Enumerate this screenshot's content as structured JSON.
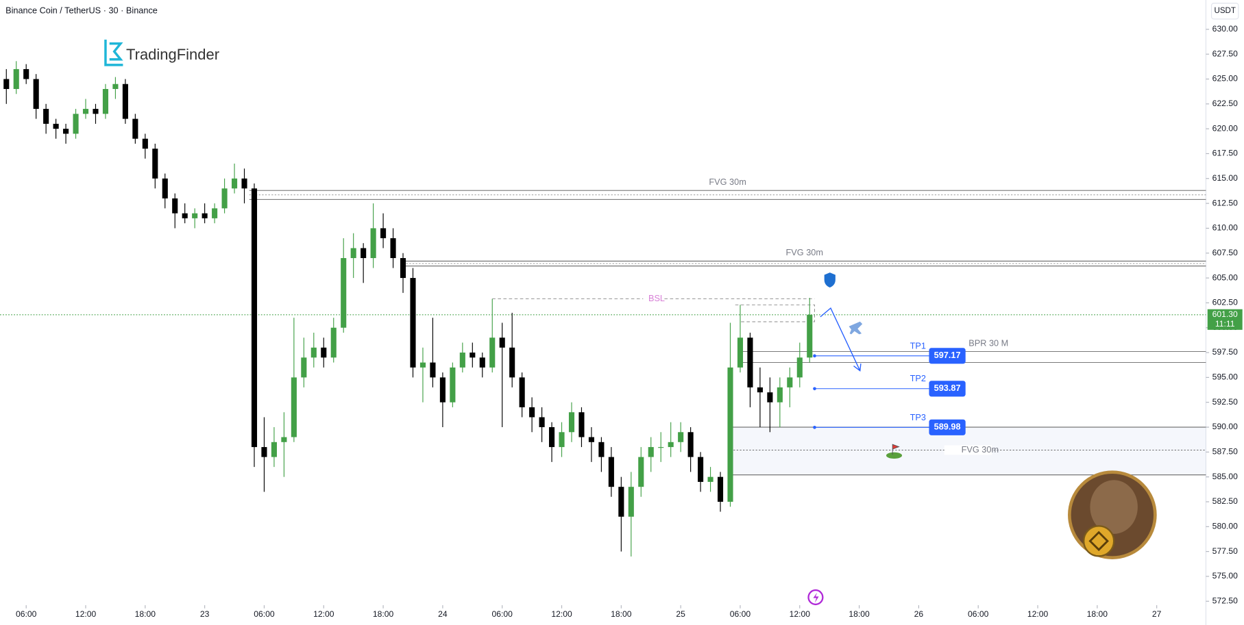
{
  "chart_data": {
    "type": "candlestick",
    "title": "Binance Coin / TetherUS · 30 · Binance",
    "currency": "USDT",
    "watermark": "TradingFinder",
    "up_color": "#43a047",
    "down_color": "#000000",
    "x": [
      4,
      5,
      6,
      7,
      8,
      9,
      10,
      11,
      12,
      13,
      14,
      15,
      16,
      17,
      18,
      19,
      20,
      21,
      22,
      23,
      24,
      25,
      26,
      27,
      28,
      29,
      30,
      31,
      32,
      33,
      34,
      35,
      36,
      37,
      38,
      39,
      40,
      41,
      42,
      43,
      44,
      45,
      46,
      47,
      48,
      49,
      50,
      51,
      52,
      53,
      54,
      55,
      56,
      57,
      58,
      59,
      60,
      61,
      62,
      63,
      64,
      65,
      66,
      67,
      68,
      69,
      70,
      71,
      72,
      73,
      74,
      75,
      76,
      77,
      78,
      79,
      80,
      81,
      82,
      83,
      84,
      85
    ],
    "open": [
      625,
      624,
      626,
      625,
      622,
      620.5,
      620,
      619.5,
      621.5,
      622,
      621.5,
      624,
      624.5,
      621,
      619,
      618,
      615,
      613,
      611.5,
      611,
      611.5,
      611,
      612,
      614,
      615,
      614,
      588,
      587,
      588.5,
      589,
      595,
      597,
      598,
      597,
      600,
      607,
      608,
      607,
      610,
      609,
      607,
      605,
      596,
      596.5,
      595,
      592.5,
      596,
      597.5,
      597,
      596,
      599,
      598,
      595,
      592,
      591,
      590,
      588,
      589.5,
      591.5,
      589,
      588.5,
      587,
      584,
      581,
      584,
      587,
      588,
      588,
      588.5,
      589.5,
      587,
      584.5,
      585,
      582.5,
      596,
      599,
      594,
      593.5,
      592.5,
      594,
      595,
      597
    ],
    "high": [
      626,
      626.8,
      626.5,
      625.5,
      622.5,
      621,
      620.5,
      622,
      623,
      622.5,
      624.5,
      625.2,
      625,
      621.5,
      619.5,
      618.5,
      615.5,
      613.5,
      612.5,
      612,
      612.5,
      612.5,
      615,
      616.5,
      616,
      614.5,
      591,
      590,
      591.5,
      601,
      599,
      599.5,
      599,
      601,
      609,
      609.5,
      608.5,
      612.5,
      611.5,
      610,
      607.5,
      606,
      598,
      601,
      595.5,
      596.5,
      598.5,
      598.5,
      597.5,
      602.9,
      600.5,
      601.5,
      595.5,
      593,
      592,
      590.5,
      590.5,
      592.5,
      592,
      590,
      589,
      588,
      585,
      585.5,
      588,
      589,
      589.5,
      590.5,
      590.5,
      590,
      587.5,
      586,
      585.5,
      600.5,
      602.3,
      599.5,
      596,
      595,
      595,
      596,
      598.5,
      603
    ],
    "low": [
      622.5,
      623.5,
      624.5,
      621,
      619.5,
      619,
      618.5,
      619,
      621,
      620.5,
      621,
      623,
      620.5,
      618.5,
      617,
      614,
      612,
      610,
      610.5,
      610,
      610.5,
      610.5,
      611.5,
      613.5,
      612.5,
      586,
      583.5,
      586,
      585,
      588.5,
      594,
      596,
      596,
      596.5,
      599.5,
      605,
      604.5,
      606,
      608,
      606,
      603.5,
      595,
      592.5,
      594,
      590,
      592,
      595.5,
      596,
      595,
      595.5,
      590,
      594,
      591,
      589.5,
      588.5,
      586.5,
      587,
      588.5,
      588,
      586.5,
      585.5,
      583,
      577.5,
      577,
      583,
      585.5,
      586.5,
      587,
      587.5,
      585.5,
      583.5,
      583.5,
      581.5,
      582,
      595.5,
      592,
      590,
      589.5,
      590,
      592,
      594,
      596.5
    ],
    "close": [
      624,
      626,
      625,
      622,
      620.5,
      620,
      619.5,
      621.5,
      622,
      621.5,
      624,
      624.5,
      621,
      619,
      618,
      615,
      613,
      611.5,
      611,
      611.5,
      611,
      612,
      614,
      615,
      614,
      588,
      587,
      588.5,
      589,
      595,
      597,
      598,
      597,
      600,
      607,
      608,
      607,
      610,
      609,
      607,
      605,
      596,
      596.5,
      595,
      592.5,
      596,
      597.5,
      597,
      596,
      599,
      598,
      595,
      592,
      591,
      590,
      588,
      589.5,
      591.5,
      589,
      588.5,
      587,
      584,
      581,
      584,
      587,
      588,
      588,
      588.5,
      589.5,
      587,
      584.5,
      585,
      582.5,
      596,
      599,
      594,
      593.5,
      592.5,
      594,
      595,
      597,
      601.3
    ],
    "xlim": [
      3.36,
      124.96
    ],
    "xticks": [
      {
        "value": 6,
        "label": "06:00"
      },
      {
        "value": 12,
        "label": "12:00"
      },
      {
        "value": 18,
        "label": "18:00"
      },
      {
        "value": 24,
        "label": "23"
      },
      {
        "value": 30,
        "label": "06:00"
      },
      {
        "value": 36,
        "label": "12:00"
      },
      {
        "value": 42,
        "label": "18:00"
      },
      {
        "value": 48,
        "label": "24"
      },
      {
        "value": 54,
        "label": "06:00"
      },
      {
        "value": 60,
        "label": "12:00"
      },
      {
        "value": 66,
        "label": "18:00"
      },
      {
        "value": 72,
        "label": "25"
      },
      {
        "value": 78,
        "label": "06:00"
      },
      {
        "value": 84,
        "label": "12:00"
      },
      {
        "value": 90,
        "label": "18:00"
      },
      {
        "value": 96,
        "label": "26"
      },
      {
        "value": 102,
        "label": "06:00"
      },
      {
        "value": 108,
        "label": "12:00"
      },
      {
        "value": 114,
        "label": "18:00"
      },
      {
        "value": 120,
        "label": "27"
      }
    ],
    "ylim": [
      572.5,
      630
    ],
    "yticks": [
      {
        "value": 572.5,
        "label": "572.50"
      },
      {
        "value": 575,
        "label": "575.00"
      },
      {
        "value": 577.5,
        "label": "577.50"
      },
      {
        "value": 580,
        "label": "580.00"
      },
      {
        "value": 582.5,
        "label": "582.50"
      },
      {
        "value": 585,
        "label": "585.00"
      },
      {
        "value": 587.5,
        "label": "587.50"
      },
      {
        "value": 590,
        "label": "590.00"
      },
      {
        "value": 592.5,
        "label": "592.50"
      },
      {
        "value": 595,
        "label": "595.00"
      },
      {
        "value": 597.5,
        "label": "597.50"
      },
      {
        "value": 600,
        "label": "600.00"
      },
      {
        "value": 602.5,
        "label": "602.50"
      },
      {
        "value": 605,
        "label": "605.00"
      },
      {
        "value": 607.5,
        "label": "607.50"
      },
      {
        "value": 610,
        "label": "610.00"
      },
      {
        "value": 612.5,
        "label": "612.50"
      },
      {
        "value": 615,
        "label": "615.00"
      },
      {
        "value": 617.5,
        "label": "617.50"
      },
      {
        "value": 620,
        "label": "620.00"
      },
      {
        "value": 622.5,
        "label": "622.50"
      },
      {
        "value": 625,
        "label": "625.00"
      },
      {
        "value": 627.5,
        "label": "627.50"
      },
      {
        "value": 630,
        "label": "630.00"
      }
    ],
    "last_price": {
      "value": 601.3,
      "label": "601.30"
    },
    "countdown": "11:11",
    "zones": [
      {
        "label": "FVG 30m",
        "top": 613.8,
        "bottom": 612.9,
        "x_start": 28.5
      },
      {
        "label": "FVG 30m",
        "top": 606.7,
        "bottom": 606.2,
        "x_start": 44
      },
      {
        "label": "FVG 30m",
        "top": 590,
        "bottom": 585.2,
        "mid": 587.7,
        "x_start": 77
      }
    ],
    "bsl": {
      "label": "BSL",
      "level": 602.9,
      "x_start": 53,
      "x_end": 85.5
    },
    "bpr": {
      "label": "BPR 30 M",
      "top": 597.6,
      "bottom": 596.5,
      "x_start": 78
    },
    "targets": [
      {
        "name": "TP1",
        "value": 597.17
      },
      {
        "name": "TP2",
        "value": 593.87
      },
      {
        "name": "TP3",
        "value": 589.98
      }
    ],
    "targets_x": 85.5
  }
}
